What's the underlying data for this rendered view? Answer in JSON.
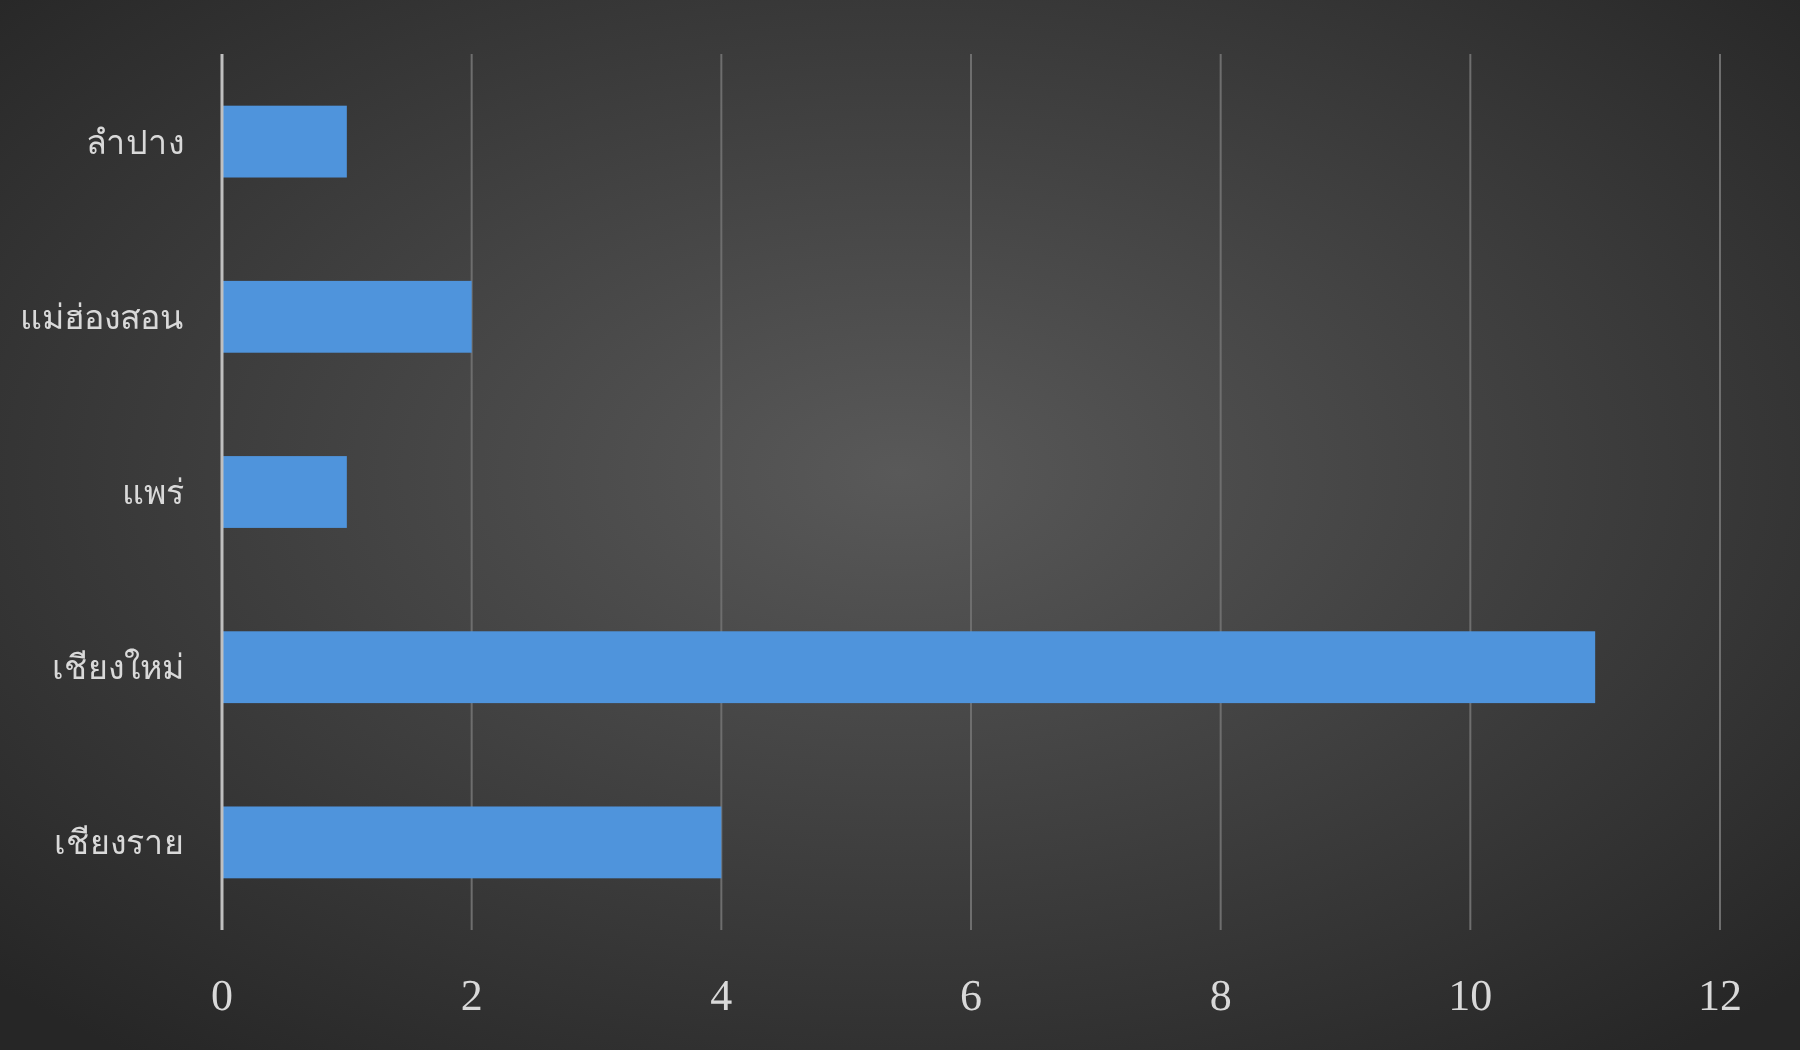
{
  "chart_data": {
    "type": "bar",
    "orientation": "horizontal",
    "categories": [
      "ลำปาง",
      "แม่ฮ่องสอน",
      "แพร่",
      "เชียงใหม่",
      "เชียงราย"
    ],
    "values": [
      1,
      2,
      1,
      11,
      4
    ],
    "color": "#4f94dc",
    "xlim": [
      0,
      12
    ],
    "xticks": [
      0,
      2,
      4,
      6,
      8,
      10,
      12
    ],
    "grid": "x"
  }
}
